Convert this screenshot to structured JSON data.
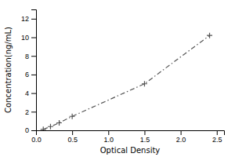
{
  "chart_data": {
    "type": "line",
    "xlabel": "Optical Density",
    "ylabel": "Concentration(ng/mL)",
    "x": [
      0.1,
      0.2,
      0.32,
      0.5,
      1.5,
      2.4
    ],
    "values": [
      0.1,
      0.4,
      0.8,
      1.5,
      5.0,
      10.2
    ],
    "color": "#555555",
    "marker": "plus",
    "line_style": "dashdot",
    "grid": false,
    "xlim": [
      0,
      2.6
    ],
    "ylim": [
      0,
      13
    ],
    "xticks": [
      {
        "value": 0,
        "label": "0.0"
      },
      0.5,
      {
        "value": 1,
        "label": "1.0"
      },
      1.5,
      {
        "value": 2,
        "label": "2.0"
      },
      2.5
    ],
    "yticks": [
      0,
      2,
      4,
      6,
      8,
      10,
      12
    ]
  }
}
